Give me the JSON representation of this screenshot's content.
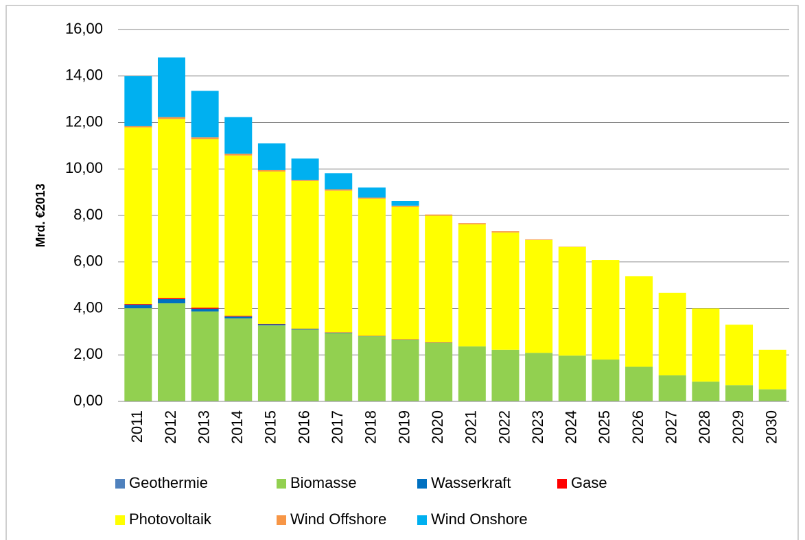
{
  "chart_data": {
    "type": "stacked-bar",
    "y_label": "Mrd. €2013",
    "categories": [
      "2011",
      "2012",
      "2013",
      "2014",
      "2015",
      "2016",
      "2017",
      "2018",
      "2019",
      "2020",
      "2021",
      "2022",
      "2023",
      "2024",
      "2025",
      "2026",
      "2027",
      "2028",
      "2029",
      "2030"
    ],
    "series": [
      {
        "name": "Geothermie",
        "color": "#4f81bd",
        "values": [
          0.01,
          0.02,
          0.02,
          0.02,
          0.02,
          0.02,
          0.02,
          0.02,
          0.02,
          0.02,
          0.02,
          0.02,
          0.02,
          0.02,
          0.02,
          0.02,
          0.02,
          0.02,
          0.02,
          0.02
        ]
      },
      {
        "name": "Biomasse",
        "color": "#92d050",
        "values": [
          4.0,
          4.2,
          3.85,
          3.55,
          3.25,
          3.07,
          2.92,
          2.78,
          2.63,
          2.5,
          2.35,
          2.2,
          2.07,
          1.95,
          1.78,
          1.47,
          1.1,
          0.83,
          0.68,
          0.5
        ]
      },
      {
        "name": "Wasserkraft",
        "color": "#0070c0",
        "values": [
          0.15,
          0.18,
          0.12,
          0.08,
          0.05,
          0.03,
          0.02,
          0.01,
          0.01,
          0.01,
          0,
          0,
          0,
          0,
          0,
          0,
          0,
          0,
          0,
          0
        ]
      },
      {
        "name": "Gase",
        "color": "#ff0000",
        "values": [
          0.03,
          0.05,
          0.04,
          0.03,
          0.02,
          0.01,
          0.01,
          0.01,
          0.01,
          0.01,
          0,
          0,
          0,
          0,
          0,
          0,
          0,
          0,
          0,
          0
        ]
      },
      {
        "name": "Photovoltaik",
        "color": "#ffff00",
        "values": [
          7.6,
          7.7,
          7.25,
          6.9,
          6.55,
          6.35,
          6.1,
          5.9,
          5.7,
          5.45,
          5.25,
          5.05,
          4.85,
          4.68,
          4.28,
          3.9,
          3.55,
          3.15,
          2.6,
          1.7
        ]
      },
      {
        "name": "Wind Offshore",
        "color": "#f79646",
        "values": [
          0.05,
          0.08,
          0.08,
          0.08,
          0.06,
          0.05,
          0.05,
          0.05,
          0.05,
          0.05,
          0.05,
          0.05,
          0.03,
          0.01,
          0,
          0,
          0,
          0,
          0,
          0
        ]
      },
      {
        "name": "Wind Onshore",
        "color": "#00b0f0",
        "values": [
          2.15,
          2.57,
          2.0,
          1.57,
          1.15,
          0.92,
          0.7,
          0.43,
          0.2,
          0,
          0,
          0,
          0,
          0,
          0,
          0,
          0,
          0,
          0,
          0
        ]
      }
    ],
    "ylim": [
      0,
      16
    ],
    "yticks": [
      {
        "value": 0,
        "label": "0,00"
      },
      {
        "value": 2,
        "label": "2,00"
      },
      {
        "value": 4,
        "label": "4,00"
      },
      {
        "value": 6,
        "label": "6,00"
      },
      {
        "value": 8,
        "label": "8,00"
      },
      {
        "value": 10,
        "label": "10,00"
      },
      {
        "value": 12,
        "label": "12,00"
      },
      {
        "value": 14,
        "label": "14,00"
      },
      {
        "value": 16,
        "label": "16,00"
      }
    ],
    "grid": true
  }
}
